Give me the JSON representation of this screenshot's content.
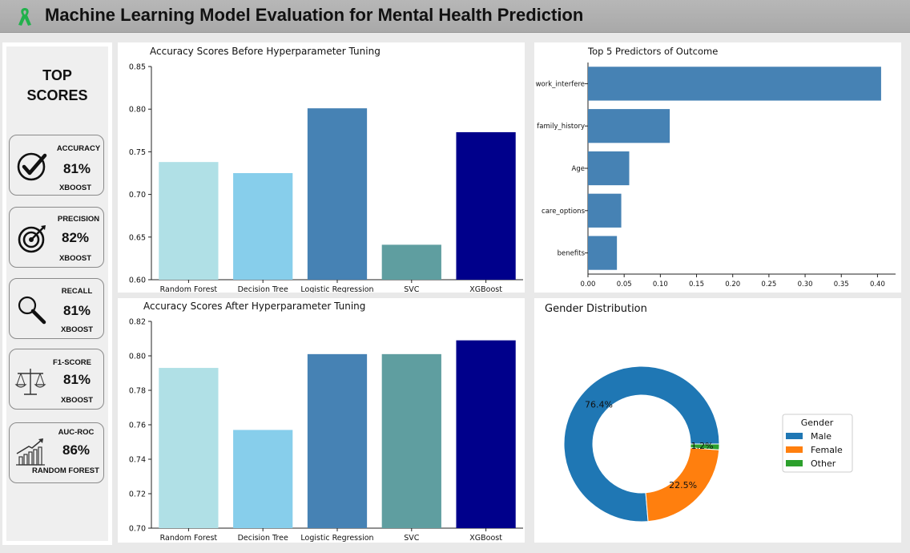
{
  "header": {
    "title": "Machine Learning Model Evaluation for Mental Health Prediction",
    "ribbon_color": "#22b14c"
  },
  "sidebar": {
    "title_line1": "TOP",
    "title_line2": "SCORES",
    "cards": [
      {
        "metric": "ACCURACY",
        "value": "81%",
        "model": "XBOOST",
        "icon": "checkmark-icon"
      },
      {
        "metric": "PRECISION",
        "value": "82%",
        "model": "XBOOST",
        "icon": "target-icon"
      },
      {
        "metric": "RECALL",
        "value": "81%",
        "model": "XBOOST",
        "icon": "magnifier-icon"
      },
      {
        "metric": "F1-SCORE",
        "value": "81%",
        "model": "XBOOST",
        "icon": "scale-icon"
      },
      {
        "metric": "AUC-ROC",
        "value": "86%",
        "model": "RANDOM FOREST",
        "icon": "growth-chart-icon"
      }
    ]
  },
  "chart_data": [
    {
      "id": "before",
      "type": "bar",
      "title": "Accuracy Scores Before Hyperparameter Tuning",
      "categories": [
        "Random Forest",
        "Decision Tree",
        "Logistic Regression",
        "SVC",
        "XGBoost"
      ],
      "values": [
        0.738,
        0.725,
        0.801,
        0.641,
        0.773
      ],
      "colors": [
        "#b0e0e6",
        "#87ceeb",
        "#4682b4",
        "#5f9ea0",
        "#00008b"
      ],
      "ylim": [
        0.6,
        0.85
      ],
      "yticks": [
        "0.60",
        "0.65",
        "0.70",
        "0.75",
        "0.80",
        "0.85"
      ]
    },
    {
      "id": "after",
      "type": "bar",
      "title": "Accuracy Scores After Hyperparameter Tuning",
      "categories": [
        "Random Forest",
        "Decision Tree",
        "Logistic Regression",
        "SVC",
        "XGBoost"
      ],
      "values": [
        0.793,
        0.757,
        0.801,
        0.801,
        0.809
      ],
      "colors": [
        "#b0e0e6",
        "#87ceeb",
        "#4682b4",
        "#5f9ea0",
        "#00008b"
      ],
      "ylim": [
        0.7,
        0.82
      ],
      "yticks": [
        "0.70",
        "0.72",
        "0.74",
        "0.76",
        "0.78",
        "0.80",
        "0.82"
      ]
    },
    {
      "id": "predictors",
      "type": "bar",
      "orientation": "horizontal",
      "title": "Top 5 Predictors of Outcome",
      "categories": [
        "work_interfere",
        "family_history",
        "Age",
        "care_options",
        "benefits"
      ],
      "values": [
        0.405,
        0.113,
        0.057,
        0.046,
        0.04
      ],
      "color": "#4682b4",
      "xlim": [
        0,
        0.425
      ],
      "xticks": [
        "0.00",
        "0.05",
        "0.10",
        "0.15",
        "0.20",
        "0.25",
        "0.30",
        "0.35",
        "0.40"
      ]
    },
    {
      "id": "gender",
      "type": "pie",
      "title": "Gender Distribution",
      "categories": [
        "Male",
        "Female",
        "Other"
      ],
      "values": [
        76.4,
        22.5,
        1.2
      ],
      "labels": [
        "76.4%",
        "22.5%",
        "1.2%"
      ],
      "colors": [
        "#1f77b4",
        "#ff7f0e",
        "#2ca02c"
      ],
      "legend_title": "Gender",
      "legend_placement": "right"
    }
  ]
}
